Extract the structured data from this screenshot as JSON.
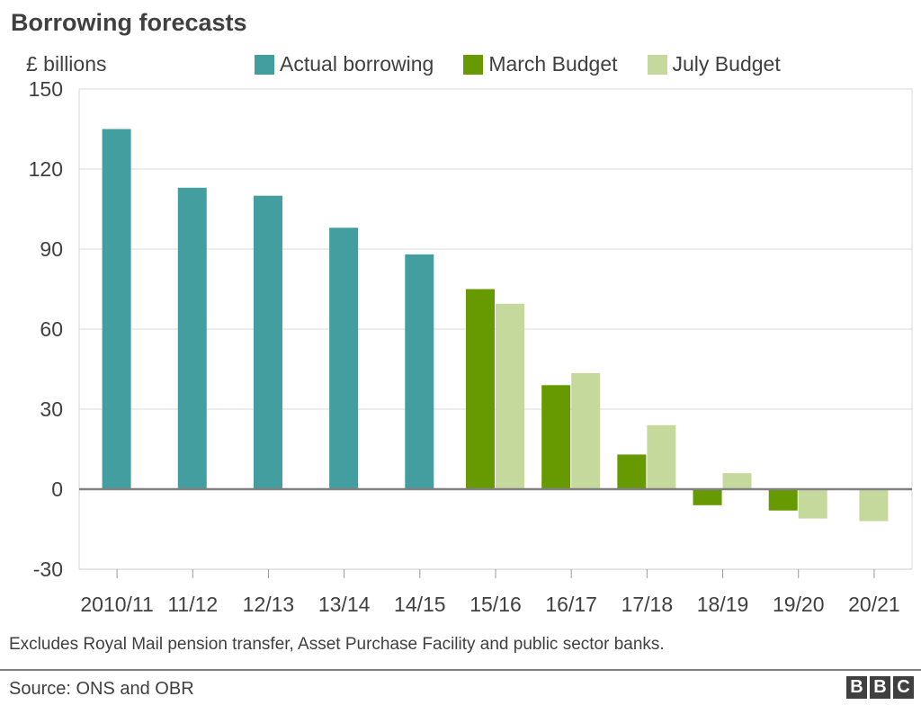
{
  "chart_data": {
    "type": "bar",
    "title": "Borrowing forecasts",
    "ylabel": "£ billions",
    "xlabel": "",
    "categories": [
      "2010/11",
      "11/12",
      "12/13",
      "13/14",
      "14/15",
      "15/16",
      "16/17",
      "17/18",
      "18/19",
      "19/20",
      "20/21"
    ],
    "series": [
      {
        "name": "Actual borrowing",
        "color": "#439e9f",
        "values": [
          135,
          113,
          110,
          98,
          88,
          null,
          null,
          null,
          null,
          null,
          null
        ]
      },
      {
        "name": "March Budget",
        "color": "#669a00",
        "values": [
          null,
          null,
          null,
          null,
          null,
          75,
          39,
          13,
          -6,
          -8,
          null
        ]
      },
      {
        "name": "July Budget",
        "color": "#c6d99c",
        "values": [
          null,
          null,
          null,
          null,
          null,
          69.5,
          43.5,
          24,
          6,
          -11,
          -12
        ]
      }
    ],
    "ylim": [
      -30,
      150
    ],
    "yticks": [
      -30,
      0,
      30,
      60,
      90,
      120,
      150
    ],
    "grid": true,
    "legend_position": "top"
  },
  "footnote": "Excludes Royal Mail pension transfer, Asset Purchase Facility and public sector banks.",
  "source": "Source: ONS and OBR",
  "logo": {
    "letters": [
      "B",
      "B",
      "C"
    ]
  }
}
